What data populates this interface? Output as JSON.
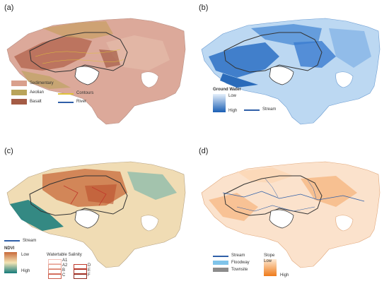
{
  "panels": {
    "a": {
      "label": "(a)",
      "legend": {
        "sedimentary": "Sedimentary",
        "aeolian": "Aeolian",
        "basalt": "Basalt",
        "contours": "Contours",
        "river": "River"
      },
      "colors": {
        "sedimentary": "#d9a08c",
        "aeolian": "#b9a45a",
        "basalt": "#a45b45",
        "contours": "#e0c23a",
        "river": "#2f5fa8"
      }
    },
    "b": {
      "label": "(b)",
      "legend": {
        "title": "Ground Water",
        "low": "Low",
        "high": "High",
        "stream": "Stream"
      },
      "colors": {
        "low": "#e6f0fb",
        "high": "#1a5fb4",
        "stream": "#2f5fa8"
      }
    },
    "c": {
      "label": "(c)",
      "legend": {
        "stream": "Stream",
        "ndvi_title": "NDVI",
        "low": "Low",
        "high": "High",
        "salinity_title": "Watertable Salinity",
        "classes": [
          "A1",
          "A2",
          "B",
          "C",
          "D",
          "E",
          "F"
        ]
      },
      "colors": {
        "ndvi_low": "#c8693a",
        "ndvi_mid": "#f3e4b5",
        "ndvi_high": "#137a7a",
        "stream": "#2f5fa8",
        "salinity": "#c0392b"
      }
    },
    "d": {
      "label": "(d)",
      "legend": {
        "stream": "Stream",
        "floodway": "Floodway",
        "townsite": "Townsite",
        "slope_title": "Slope",
        "low": "Low",
        "high": "High"
      },
      "colors": {
        "stream": "#2f5fa8",
        "floodway": "#7fc4ea",
        "townsite": "#8c8c8c",
        "slope_low": "#fde9d3",
        "slope_high": "#ef7b1a"
      }
    }
  }
}
